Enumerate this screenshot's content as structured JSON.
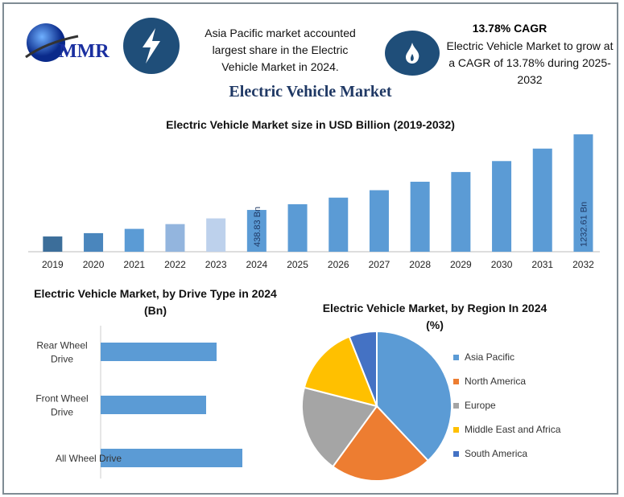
{
  "logo": {
    "text": "MMR"
  },
  "highlight1": {
    "icon": "lightning-bolt-icon",
    "text": "Asia Pacific market accounted largest share in the Electric Vehicle Market in 2024."
  },
  "highlight2": {
    "icon": "flame-icon",
    "title": "13.78% CAGR",
    "text": "Electric Vehicle Market to grow at a CAGR of 13.78% during 2025-2032"
  },
  "main_title": "Electric Vehicle Market",
  "colors": {
    "icon_bg": "#1f4e79",
    "bar": "#5b9bd5",
    "title": "#1f3864"
  },
  "chart_data": [
    {
      "type": "bar",
      "title": "Electric Vehicle Market size in USD Billion (2019-2032)",
      "categories": [
        "2019",
        "2020",
        "2021",
        "2022",
        "2023",
        "2024",
        "2025",
        "2026",
        "2027",
        "2028",
        "2029",
        "2030",
        "2031",
        "2032"
      ],
      "values": [
        160,
        195,
        240,
        290,
        350,
        438.83,
        499,
        568,
        646,
        735,
        837,
        952,
        1083,
        1232.61
      ],
      "bar_colors": [
        "#3c6e9a",
        "#4a86bd",
        "#5b9bd5",
        "#93b5de",
        "#bdd1ec",
        "#5b9bd5",
        "#5b9bd5",
        "#5b9bd5",
        "#5b9bd5",
        "#5b9bd5",
        "#5b9bd5",
        "#5b9bd5",
        "#5b9bd5",
        "#5b9bd5"
      ],
      "data_labels": {
        "2024": "438.83 Bn",
        "2032": "1232.61 Bn"
      },
      "ylim": [
        0,
        1250
      ],
      "grid": false
    },
    {
      "type": "bar",
      "orientation": "horizontal",
      "title": "Electric Vehicle Market, by Drive Type in 2024 (Bn)",
      "categories": [
        "Rear Wheel Drive",
        "Front Wheel Drive",
        "All Wheel Drive"
      ],
      "values": [
        144,
        131,
        176
      ],
      "color": "#5b9bd5",
      "grid": false
    },
    {
      "type": "pie",
      "title": "Electric Vehicle Market, by Region In 2024 (%)",
      "labels": [
        "Asia Pacific",
        "North America",
        "Europe",
        "Middle East and Africa",
        "South America"
      ],
      "values": [
        38,
        22,
        19,
        15,
        6
      ],
      "colors": [
        "#5b9bd5",
        "#ed7d31",
        "#a5a5a5",
        "#ffc000",
        "#4472c4"
      ],
      "legend": "right"
    }
  ]
}
